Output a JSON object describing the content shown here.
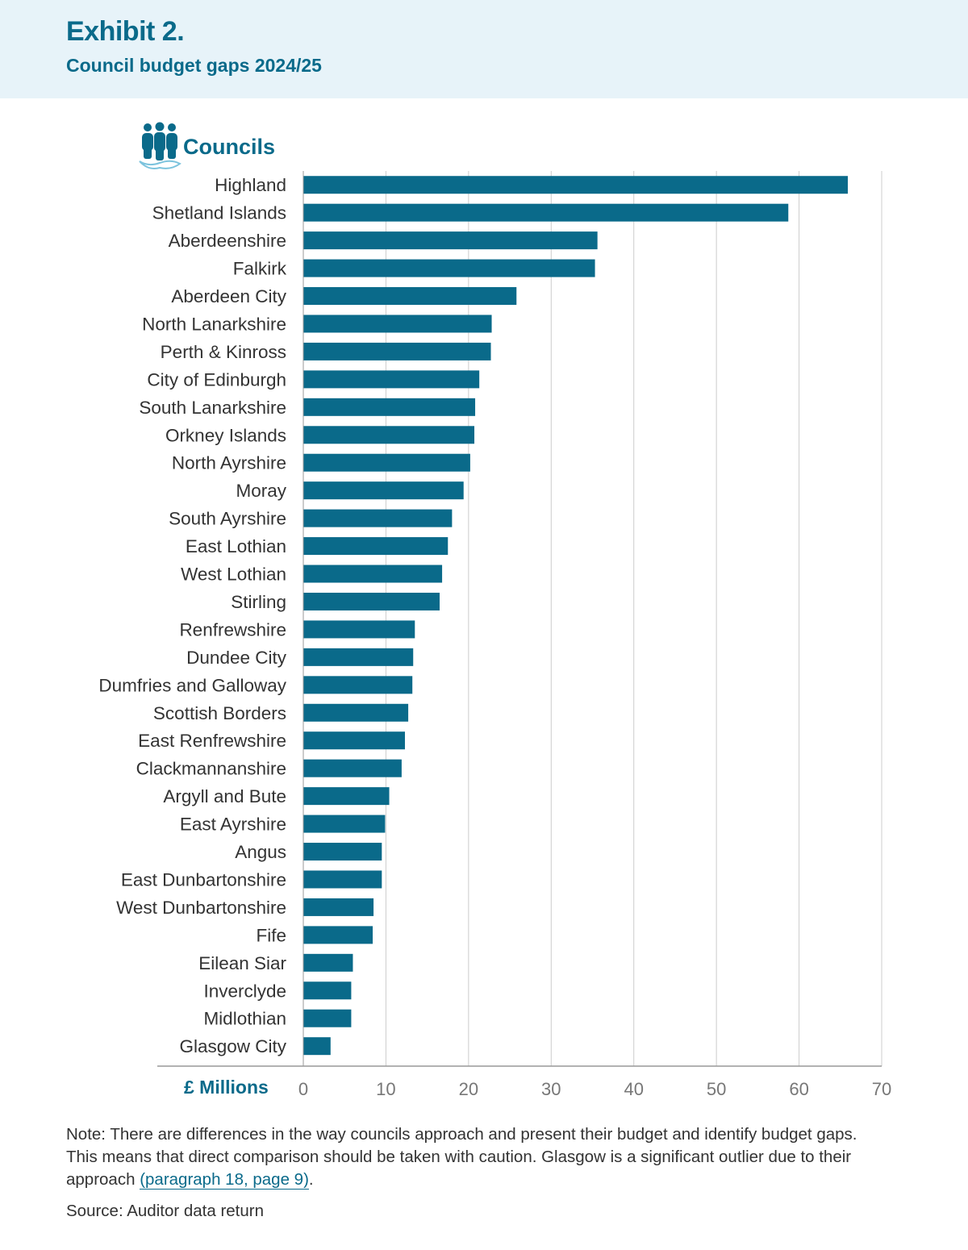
{
  "header": {
    "exhibit": "Exhibit 2.",
    "title": "Council budget gaps 2024/25"
  },
  "legend": {
    "icon": "people-group-icon",
    "label": "Councils"
  },
  "colors": {
    "bar": "#0a6a8a",
    "accent": "#0a6a8a",
    "header_bg": "#e7f3f9",
    "grid": "#cccccc"
  },
  "note": {
    "text": "Note: There are differences in the way councils approach and present their budget and identify budget gaps. This means that direct comparison should be taken with caution. Glasgow is a significant outlier due to their approach ",
    "link": "(paragraph 18, page 9)",
    "end": "."
  },
  "source": "Source: Auditor data return",
  "chart_data": {
    "type": "bar",
    "orientation": "horizontal",
    "categories": [
      "Highland",
      "Shetland Islands",
      "Aberdeenshire",
      "Falkirk",
      "Aberdeen City",
      "North Lanarkshire",
      "Perth & Kinross",
      "City of Edinburgh",
      "South Lanarkshire",
      "Orkney Islands",
      "North Ayrshire",
      "Moray",
      "South Ayrshire",
      "East Lothian",
      "West Lothian",
      "Stirling",
      "Renfrewshire",
      "Dundee City",
      "Dumfries and Galloway",
      "Scottish Borders",
      "East Renfrewshire",
      "Clackmannanshire",
      "Argyll and Bute",
      "East Ayrshire",
      "Angus",
      "East Dunbartonshire",
      "West Dunbartonshire",
      "Fife",
      "Eilean Siar",
      "Inverclyde",
      "Midlothian",
      "Glasgow City"
    ],
    "values": [
      65.9,
      58.7,
      35.6,
      35.3,
      25.8,
      22.8,
      22.7,
      21.3,
      20.8,
      20.7,
      20.2,
      19.4,
      18.0,
      17.5,
      16.8,
      16.5,
      13.5,
      13.3,
      13.2,
      12.7,
      12.3,
      11.9,
      10.4,
      9.9,
      9.5,
      9.5,
      8.5,
      8.4,
      6.0,
      5.8,
      5.8,
      3.3
    ],
    "xlabel": "£ Millions",
    "ylabel": "Councils",
    "xlim": [
      0,
      70
    ],
    "xticks": [
      "0",
      "10",
      "20",
      "30",
      "40",
      "50",
      "60",
      "70"
    ],
    "grid": true,
    "legend": false
  }
}
